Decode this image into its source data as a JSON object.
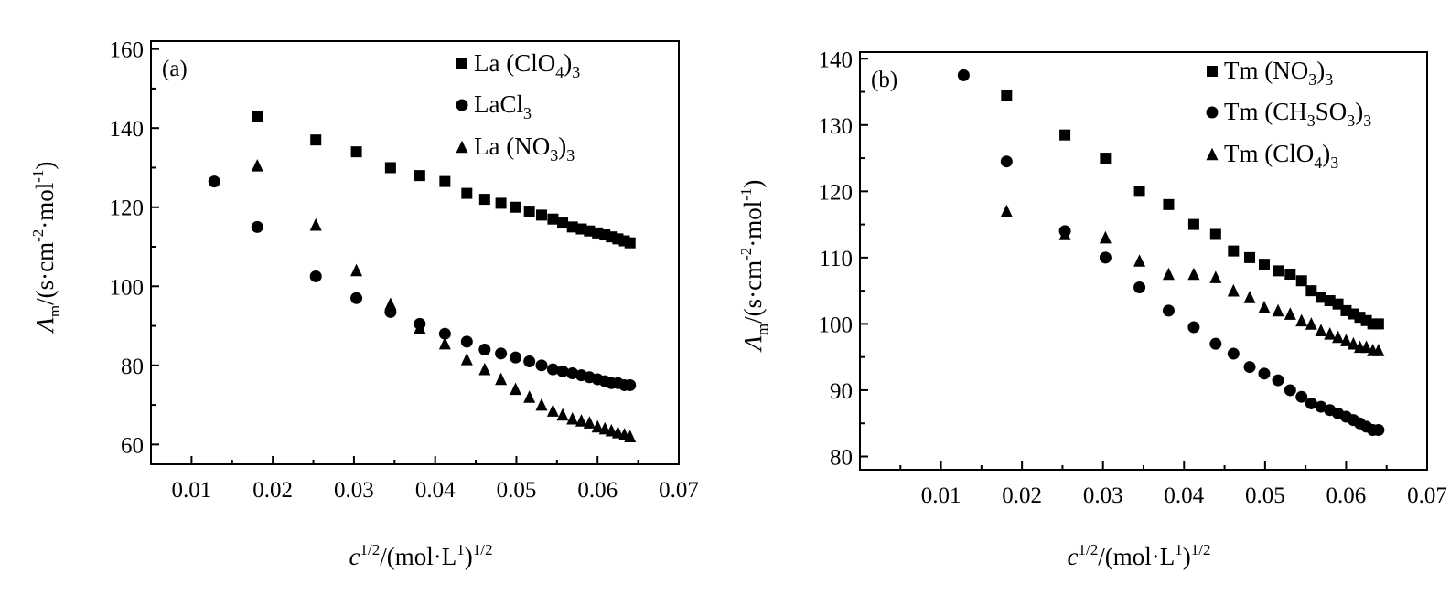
{
  "chart_data": [
    {
      "type": "scatter",
      "panel_label": "(a)",
      "xlabel_parts": {
        "c": "c",
        "exp": "1/2",
        "unit_open": "/(mol·L",
        "unit_exp": "1",
        "unit_close": ")",
        "unit_tail_exp": "1/2"
      },
      "ylabel_parts": {
        "lambda": "Λ",
        "sub": "m",
        "pre": "/(s·cm",
        "exp1": "-2",
        "mid": "·mol",
        "exp2": "-1",
        "close": ")"
      },
      "xlim": [
        0.005,
        0.07
      ],
      "ylim": [
        55,
        162
      ],
      "x_ticks": [
        0.01,
        0.02,
        0.03,
        0.04,
        0.05,
        0.06,
        0.07
      ],
      "x_tick_labels": [
        "0.01",
        "0.02",
        "0.03",
        "0.04",
        "0.05",
        "0.06",
        "0.07"
      ],
      "y_ticks": [
        60,
        80,
        100,
        120,
        140,
        160
      ],
      "y_tick_labels": [
        "60",
        "80",
        "100",
        "120",
        "140",
        "160"
      ],
      "legend_position": "top-right",
      "series": [
        {
          "name": "La (ClO4)3",
          "legend": {
            "pre": "La (ClO",
            "sub1": "4",
            "mid": ")",
            "sub2": "3"
          },
          "marker": "square",
          "x": [
            0.0181,
            0.0253,
            0.0303,
            0.0345,
            0.0381,
            0.0412,
            0.0439,
            0.0461,
            0.0481,
            0.0499,
            0.0516,
            0.0531,
            0.0545,
            0.0557,
            0.0569,
            0.058,
            0.059,
            0.06,
            0.0609,
            0.0617,
            0.0625,
            0.0633,
            0.064
          ],
          "y": [
            143,
            137,
            134,
            130,
            128,
            126.5,
            123.5,
            122,
            121,
            120,
            119,
            118,
            117,
            116,
            115,
            114.5,
            114,
            113.5,
            113,
            112.5,
            112,
            111.5,
            111
          ]
        },
        {
          "name": "LaCl3",
          "legend": {
            "pre": "LaCl",
            "sub1": "3",
            "mid": "",
            "sub2": ""
          },
          "marker": "circle",
          "x": [
            0.0128,
            0.0181,
            0.0253,
            0.0303,
            0.0345,
            0.0381,
            0.0412,
            0.0439,
            0.0461,
            0.0481,
            0.0499,
            0.0516,
            0.0531,
            0.0545,
            0.0557,
            0.0569,
            0.058,
            0.059,
            0.06,
            0.0609,
            0.0617,
            0.0625,
            0.0633,
            0.064
          ],
          "y": [
            126.5,
            115,
            102.5,
            97,
            93.5,
            90.5,
            88,
            86,
            84,
            83,
            82,
            81,
            80,
            79,
            78.5,
            78,
            77.5,
            77,
            76.5,
            76,
            75.5,
            75.5,
            75,
            75
          ]
        },
        {
          "name": "La (NO3)3",
          "legend": {
            "pre": "La (NO",
            "sub1": "3",
            "mid": ")",
            "sub2": "3"
          },
          "marker": "triangle",
          "x": [
            0.0181,
            0.0253,
            0.0303,
            0.0345,
            0.0381,
            0.0412,
            0.0439,
            0.0461,
            0.0481,
            0.0499,
            0.0516,
            0.0531,
            0.0545,
            0.0557,
            0.0569,
            0.058,
            0.059,
            0.06,
            0.0609,
            0.0617,
            0.0625,
            0.0633,
            0.064
          ],
          "y": [
            130.5,
            115.5,
            104,
            95.5,
            89.5,
            85.5,
            81.5,
            79,
            76.5,
            74,
            72,
            70,
            68.5,
            67.5,
            66.5,
            66,
            65.5,
            64.5,
            64,
            63.5,
            63,
            62.5,
            62
          ]
        }
      ]
    },
    {
      "type": "scatter",
      "panel_label": "(b)",
      "xlabel_parts": {
        "c": "c",
        "exp": "1/2",
        "unit_open": "/(mol·L",
        "unit_exp": "1",
        "unit_close": ")",
        "unit_tail_exp": "1/2"
      },
      "ylabel_parts": {
        "lambda": "Λ",
        "sub": "m",
        "pre": "/(s·cm",
        "exp1": "-2",
        "mid": "·mol",
        "exp2": "-1",
        "close": ")"
      },
      "xlim": [
        0.0,
        0.07
      ],
      "ylim": [
        78,
        141
      ],
      "x_ticks": [
        0.01,
        0.02,
        0.03,
        0.04,
        0.05,
        0.06,
        0.07
      ],
      "x_tick_labels": [
        "0.01",
        "0.02",
        "0.03",
        "0.04",
        "0.05",
        "0.06",
        "0.07"
      ],
      "y_ticks": [
        80,
        90,
        100,
        110,
        120,
        130,
        140
      ],
      "y_tick_labels": [
        "80",
        "90",
        "100",
        "110",
        "120",
        "130",
        "140"
      ],
      "legend_position": "top-right",
      "series": [
        {
          "name": "Tm (NO3)3",
          "legend": {
            "pre": "Tm (NO",
            "sub1": "3",
            "mid": ")",
            "sub2": "3"
          },
          "marker": "square",
          "x": [
            0.0181,
            0.0253,
            0.0303,
            0.0345,
            0.0381,
            0.0412,
            0.0439,
            0.0461,
            0.0481,
            0.0499,
            0.0516,
            0.0531,
            0.0545,
            0.0557,
            0.0569,
            0.058,
            0.059,
            0.06,
            0.0609,
            0.0617,
            0.0625,
            0.0633,
            0.064
          ],
          "y": [
            134.5,
            128.5,
            125,
            120,
            118,
            115,
            113.5,
            111,
            110,
            109,
            108,
            107.5,
            106.5,
            105,
            104,
            103.5,
            103,
            102,
            101.5,
            101,
            100.5,
            100,
            100
          ]
        },
        {
          "name": "Tm (CH3SO3)3",
          "legend": {
            "pre": "Tm (CH",
            "sub1": "3",
            "mid": "SO",
            "sub1b": "3",
            "mid2": ")",
            "sub2": "3"
          },
          "marker": "circle",
          "x": [
            0.0128,
            0.0181,
            0.0253,
            0.0303,
            0.0345,
            0.0381,
            0.0412,
            0.0439,
            0.0461,
            0.0481,
            0.0499,
            0.0516,
            0.0531,
            0.0545,
            0.0557,
            0.0569,
            0.058,
            0.059,
            0.06,
            0.0609,
            0.0617,
            0.0625,
            0.0633,
            0.064
          ],
          "y": [
            137.5,
            124.5,
            114,
            110,
            105.5,
            102,
            99.5,
            97,
            95.5,
            93.5,
            92.5,
            91.5,
            90,
            89,
            88,
            87.5,
            87,
            86.5,
            86,
            85.5,
            85,
            84.5,
            84,
            84
          ]
        },
        {
          "name": "Tm (ClO4)3",
          "legend": {
            "pre": "Tm (ClO",
            "sub1": "4",
            "mid": ")",
            "sub2": "3"
          },
          "marker": "triangle",
          "x": [
            0.0181,
            0.0253,
            0.0303,
            0.0345,
            0.0381,
            0.0412,
            0.0439,
            0.0461,
            0.0481,
            0.0499,
            0.0516,
            0.0531,
            0.0545,
            0.0557,
            0.0569,
            0.058,
            0.059,
            0.06,
            0.0609,
            0.0617,
            0.0625,
            0.0633,
            0.064
          ],
          "y": [
            117,
            113.5,
            113,
            109.5,
            107.5,
            107.5,
            107,
            105,
            104,
            102.5,
            102,
            101.5,
            100.5,
            100,
            99,
            98.5,
            98,
            97.5,
            97,
            96.5,
            96.5,
            96,
            96
          ]
        }
      ]
    }
  ]
}
